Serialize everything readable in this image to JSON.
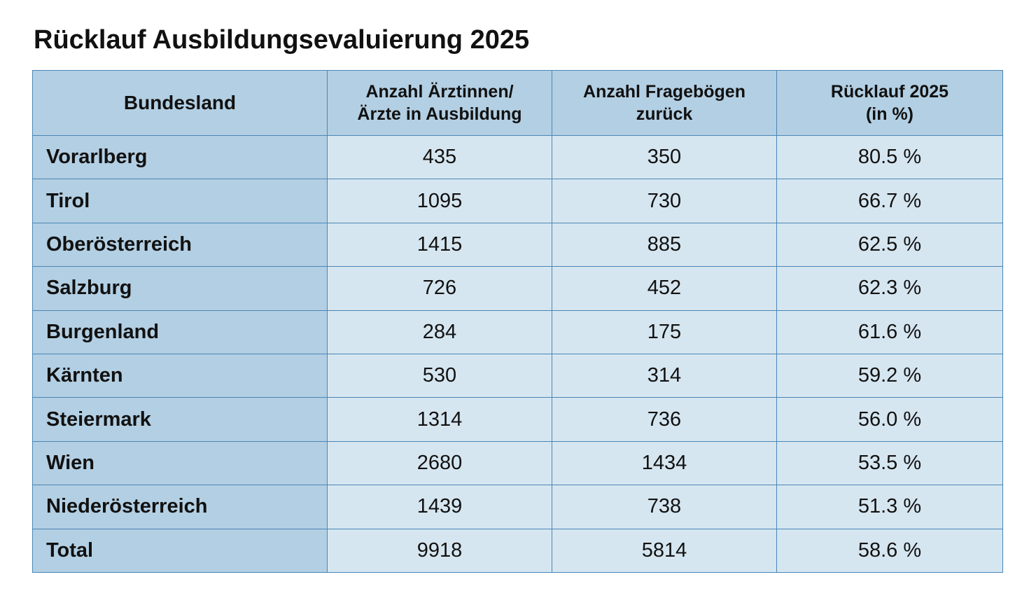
{
  "chart_data": {
    "type": "table",
    "title": "Rücklauf Ausbildungsevaluierung 2025",
    "columns": [
      [
        "Bundesland"
      ],
      [
        "Anzahl Ärztinnen/",
        "Ärzte in Ausbildung"
      ],
      [
        "Anzahl Fragebögen",
        "zurück"
      ],
      [
        "Rücklauf 2025",
        "(in %)"
      ]
    ],
    "rows": [
      {
        "bundesland": "Vorarlberg",
        "aerzte": "435",
        "frageboegen": "350",
        "ruecklauf": "80.5 %"
      },
      {
        "bundesland": "Tirol",
        "aerzte": "1095",
        "frageboegen": "730",
        "ruecklauf": "66.7 %"
      },
      {
        "bundesland": "Oberösterreich",
        "aerzte": "1415",
        "frageboegen": "885",
        "ruecklauf": "62.5 %"
      },
      {
        "bundesland": "Salzburg",
        "aerzte": "726",
        "frageboegen": "452",
        "ruecklauf": "62.3 %"
      },
      {
        "bundesland": "Burgenland",
        "aerzte": "284",
        "frageboegen": "175",
        "ruecklauf": "61.6 %"
      },
      {
        "bundesland": "Kärnten",
        "aerzte": "530",
        "frageboegen": "314",
        "ruecklauf": "59.2 %"
      },
      {
        "bundesland": "Steiermark",
        "aerzte": "1314",
        "frageboegen": "736",
        "ruecklauf": "56.0 %"
      },
      {
        "bundesland": "Wien",
        "aerzte": "2680",
        "frageboegen": "1434",
        "ruecklauf": "53.5 %"
      },
      {
        "bundesland": "Niederösterreich",
        "aerzte": "1439",
        "frageboegen": "738",
        "ruecklauf": "51.3 %"
      },
      {
        "bundesland": "Total",
        "aerzte": "9918",
        "frageboegen": "5814",
        "ruecklauf": "58.6 %"
      }
    ]
  },
  "colors": {
    "header_bg": "#b3cfe3",
    "label_bg": "#b3cfe3",
    "cell_bg": "#d6e6f0",
    "border": "#4a86b6",
    "text": "#111111"
  }
}
